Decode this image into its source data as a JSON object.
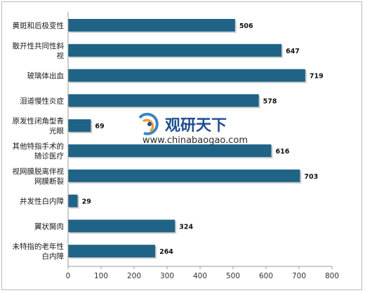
{
  "chart_data": {
    "type": "bar",
    "orientation": "horizontal",
    "categories": [
      [
        "黄斑和后极变性"
      ],
      [
        "散开性共同性斜",
        "视"
      ],
      [
        "玻璃体出血"
      ],
      [
        "泪道慢性炎症"
      ],
      [
        "原发性闭角型青",
        "光眼"
      ],
      [
        "其他特指手术的",
        "随诊医疗"
      ],
      [
        "视网膜脱离伴视",
        "网膜断裂"
      ],
      [
        "并发性白内障"
      ],
      [
        "翼状胬肉"
      ],
      [
        "未特指的老年性",
        "白内障"
      ]
    ],
    "values": [
      506,
      647,
      719,
      578,
      69,
      616,
      703,
      29,
      324,
      264
    ],
    "value_labels": [
      "506",
      "647",
      "719",
      "578",
      "69",
      "616",
      "703",
      "29",
      "324",
      "264"
    ],
    "xticks": [
      "0",
      "100",
      "200",
      "300",
      "400",
      "500",
      "600",
      "700",
      "800"
    ],
    "xlim": [
      0,
      800
    ],
    "grid": false,
    "bar_color": "#1f6386"
  },
  "watermark": {
    "name": "观研天下",
    "url": "www.chinabaogao.com"
  }
}
